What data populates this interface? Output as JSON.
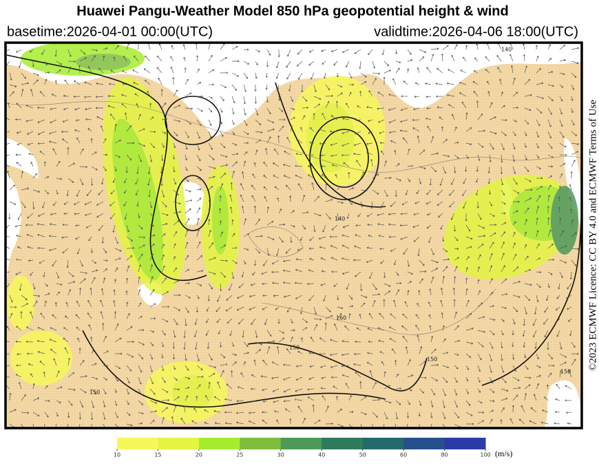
{
  "header": {
    "title": "Huawei Pangu-Weather Model 850 hPa geopotential height & wind",
    "basetime": "basetime:2026-04-01 00:00(UTC)",
    "validtime": "validtime:2026-04-06 18:00(UTC)"
  },
  "credit": "©2023 ECMWF Licence: CC BY 4.0 and ECMWF Terms of Use",
  "map": {
    "contour_labels": [
      "140",
      "140",
      "150",
      "150",
      "160",
      "150",
      "150"
    ]
  },
  "colorbar": {
    "ticks": [
      10,
      15,
      20,
      25,
      30,
      40,
      50,
      60,
      80,
      100
    ],
    "colors": [
      "#f7f75c",
      "#e3f542",
      "#a6ec2e",
      "#7fbd3c",
      "#4d9a58",
      "#2f7c5c",
      "#226a6c",
      "#26508c",
      "#2c3aa8"
    ],
    "unit": "(m/s)"
  }
}
